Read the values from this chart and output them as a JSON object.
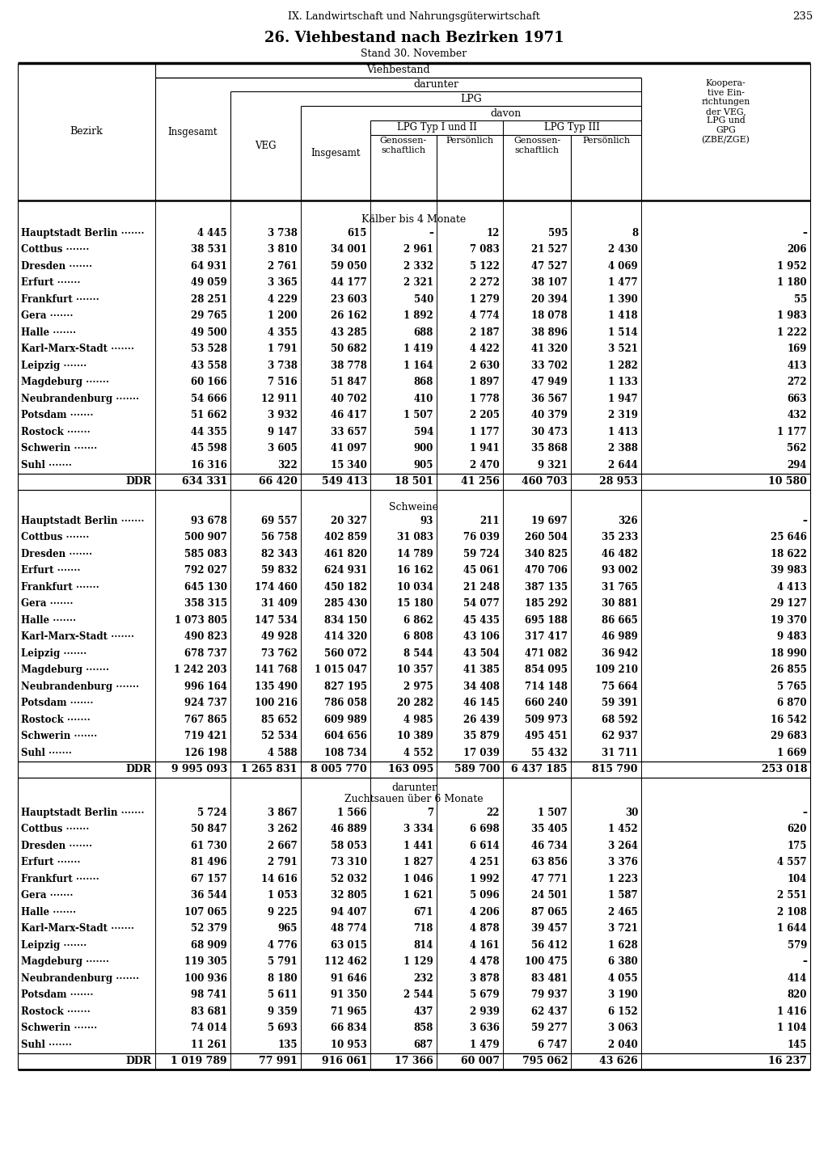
{
  "page_header": "IX. Landwirtschaft und Nahrungsgüterwirtschaft",
  "page_number": "235",
  "title": "26. Viehbestand nach Bezirken 1971",
  "subtitle": "Stand 30. November",
  "section1_header": "Kälber bis 4 Monate",
  "section1_rows": [
    [
      "Hauptstadt Berlin",
      "4 445",
      "3 738",
      "615",
      "–",
      "12",
      "595",
      "8",
      "–"
    ],
    [
      "Cottbus",
      "38 531",
      "3 810",
      "34 001",
      "2 961",
      "7 083",
      "21 527",
      "2 430",
      "206"
    ],
    [
      "Dresden",
      "64 931",
      "2 761",
      "59 050",
      "2 332",
      "5 122",
      "47 527",
      "4 069",
      "1 952"
    ],
    [
      "Erfurt",
      "49 059",
      "3 365",
      "44 177",
      "2 321",
      "2 272",
      "38 107",
      "1 477",
      "1 180"
    ],
    [
      "Frankfurt",
      "28 251",
      "4 229",
      "23 603",
      "540",
      "1 279",
      "20 394",
      "1 390",
      "55"
    ],
    [
      "Gera",
      "29 765",
      "1 200",
      "26 162",
      "1 892",
      "4 774",
      "18 078",
      "1 418",
      "1 983"
    ],
    [
      "Halle",
      "49 500",
      "4 355",
      "43 285",
      "688",
      "2 187",
      "38 896",
      "1 514",
      "1 222"
    ],
    [
      "Karl-Marx-Stadt",
      "53 528",
      "1 791",
      "50 682",
      "1 419",
      "4 422",
      "41 320",
      "3 521",
      "169"
    ],
    [
      "Leipzig",
      "43 558",
      "3 738",
      "38 778",
      "1 164",
      "2 630",
      "33 702",
      "1 282",
      "413"
    ],
    [
      "Magdeburg",
      "60 166",
      "7 516",
      "51 847",
      "868",
      "1 897",
      "47 949",
      "1 133",
      "272"
    ],
    [
      "Neubrandenburg",
      "54 666",
      "12 911",
      "40 702",
      "410",
      "1 778",
      "36 567",
      "1 947",
      "663"
    ],
    [
      "Potsdam",
      "51 662",
      "3 932",
      "46 417",
      "1 507",
      "2 205",
      "40 379",
      "2 319",
      "432"
    ],
    [
      "Rostock",
      "44 355",
      "9 147",
      "33 657",
      "594",
      "1 177",
      "30 473",
      "1 413",
      "1 177"
    ],
    [
      "Schwerin",
      "45 598",
      "3 605",
      "41 097",
      "900",
      "1 941",
      "35 868",
      "2 388",
      "562"
    ],
    [
      "Suhl",
      "16 316",
      "322",
      "15 340",
      "905",
      "2 470",
      "9 321",
      "2 644",
      "294"
    ]
  ],
  "section1_ddr": [
    "DDR",
    "634 331",
    "66 420",
    "549 413",
    "18 501",
    "41 256",
    "460 703",
    "28 953",
    "10 580"
  ],
  "section2_header": "Schweine",
  "section2_rows": [
    [
      "Hauptstadt Berlin",
      "93 678",
      "69 557",
      "20 327",
      "93",
      "211",
      "19 697",
      "326",
      "–"
    ],
    [
      "Cottbus",
      "500 907",
      "56 758",
      "402 859",
      "31 083",
      "76 039",
      "260 504",
      "35 233",
      "25 646"
    ],
    [
      "Dresden",
      "585 083",
      "82 343",
      "461 820",
      "14 789",
      "59 724",
      "340 825",
      "46 482",
      "18 622"
    ],
    [
      "Erfurt",
      "792 027",
      "59 832",
      "624 931",
      "16 162",
      "45 061",
      "470 706",
      "93 002",
      "39 983"
    ],
    [
      "Frankfurt",
      "645 130",
      "174 460",
      "450 182",
      "10 034",
      "21 248",
      "387 135",
      "31 765",
      "4 413"
    ],
    [
      "Gera",
      "358 315",
      "31 409",
      "285 430",
      "15 180",
      "54 077",
      "185 292",
      "30 881",
      "29 127"
    ],
    [
      "Halle",
      "1 073 805",
      "147 534",
      "834 150",
      "6 862",
      "45 435",
      "695 188",
      "86 665",
      "19 370"
    ],
    [
      "Karl-Marx-Stadt",
      "490 823",
      "49 928",
      "414 320",
      "6 808",
      "43 106",
      "317 417",
      "46 989",
      "9 483"
    ],
    [
      "Leipzig",
      "678 737",
      "73 762",
      "560 072",
      "8 544",
      "43 504",
      "471 082",
      "36 942",
      "18 990"
    ],
    [
      "Magdeburg",
      "1 242 203",
      "141 768",
      "1 015 047",
      "10 357",
      "41 385",
      "854 095",
      "109 210",
      "26 855"
    ],
    [
      "Neubrandenburg",
      "996 164",
      "135 490",
      "827 195",
      "2 975",
      "34 408",
      "714 148",
      "75 664",
      "5 765"
    ],
    [
      "Potsdam",
      "924 737",
      "100 216",
      "786 058",
      "20 282",
      "46 145",
      "660 240",
      "59 391",
      "6 870"
    ],
    [
      "Rostock",
      "767 865",
      "85 652",
      "609 989",
      "4 985",
      "26 439",
      "509 973",
      "68 592",
      "16 542"
    ],
    [
      "Schwerin",
      "719 421",
      "52 534",
      "604 656",
      "10 389",
      "35 879",
      "495 451",
      "62 937",
      "29 683"
    ],
    [
      "Suhl",
      "126 198",
      "4 588",
      "108 734",
      "4 552",
      "17 039",
      "55 432",
      "31 711",
      "1 669"
    ]
  ],
  "section2_ddr": [
    "DDR",
    "9 995 093",
    "1 265 831",
    "8 005 770",
    "163 095",
    "589 700",
    "6 437 185",
    "815 790",
    "253 018"
  ],
  "section3_header": "Zuchtsauen über 6 Monate",
  "section3_rows": [
    [
      "Hauptstadt Berlin",
      "5 724",
      "3 867",
      "1 566",
      "7",
      "22",
      "1 507",
      "30",
      "–"
    ],
    [
      "Cottbus",
      "50 847",
      "3 262",
      "46 889",
      "3 334",
      "6 698",
      "35 405",
      "1 452",
      "620"
    ],
    [
      "Dresden",
      "61 730",
      "2 667",
      "58 053",
      "1 441",
      "6 614",
      "46 734",
      "3 264",
      "175"
    ],
    [
      "Erfurt",
      "81 496",
      "2 791",
      "73 310",
      "1 827",
      "4 251",
      "63 856",
      "3 376",
      "4 557"
    ],
    [
      "Frankfurt",
      "67 157",
      "14 616",
      "52 032",
      "1 046",
      "1 992",
      "47 771",
      "1 223",
      "104"
    ],
    [
      "Gera",
      "36 544",
      "1 053",
      "32 805",
      "1 621",
      "5 096",
      "24 501",
      "1 587",
      "2 551"
    ],
    [
      "Halle",
      "107 065",
      "9 225",
      "94 407",
      "671",
      "4 206",
      "87 065",
      "2 465",
      "2 108"
    ],
    [
      "Karl-Marx-Stadt",
      "52 379",
      "965",
      "48 774",
      "718",
      "4 878",
      "39 457",
      "3 721",
      "1 644"
    ],
    [
      "Leipzig",
      "68 909",
      "4 776",
      "63 015",
      "814",
      "4 161",
      "56 412",
      "1 628",
      "579"
    ],
    [
      "Magdeburg",
      "119 305",
      "5 791",
      "112 462",
      "1 129",
      "4 478",
      "100 475",
      "6 380",
      "–"
    ],
    [
      "Neubrandenburg",
      "100 936",
      "8 180",
      "91 646",
      "232",
      "3 878",
      "83 481",
      "4 055",
      "414"
    ],
    [
      "Potsdam",
      "98 741",
      "5 611",
      "91 350",
      "2 544",
      "5 679",
      "79 937",
      "3 190",
      "820"
    ],
    [
      "Rostock",
      "83 681",
      "9 359",
      "71 965",
      "437",
      "2 939",
      "62 437",
      "6 152",
      "1 416"
    ],
    [
      "Schwerin",
      "74 014",
      "5 693",
      "66 834",
      "858",
      "3 636",
      "59 277",
      "3 063",
      "1 104"
    ],
    [
      "Suhl",
      "11 261",
      "135",
      "10 953",
      "687",
      "1 479",
      "6 747",
      "2 040",
      "145"
    ]
  ],
  "section3_ddr": [
    "DDR",
    "1 019 789",
    "77 991",
    "916 061",
    "17 366",
    "60 007",
    "795 062",
    "43 626",
    "16 237"
  ]
}
